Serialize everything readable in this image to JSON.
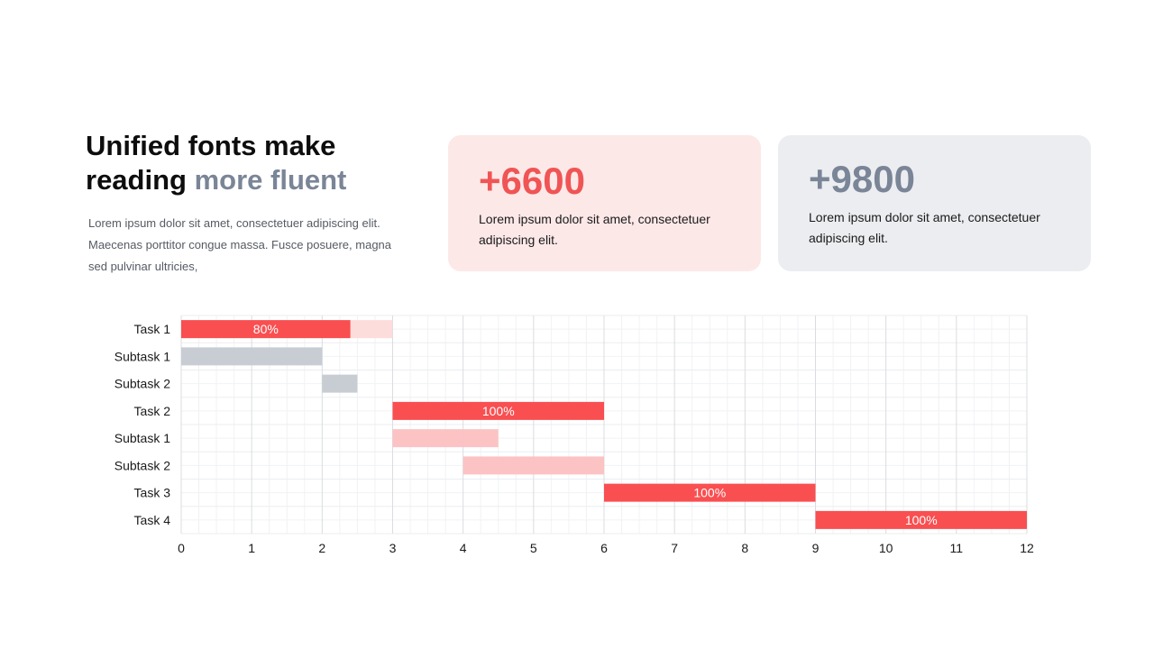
{
  "headline": {
    "line1": "Unified fonts make",
    "line2_plain": "reading ",
    "line2_accent": "more fluent"
  },
  "intro_text": "Lorem ipsum dolor sit amet, consectetuer adipiscing elit. Maecenas porttitor congue massa. Fusce posuere, magna sed pulvinar ultricies,",
  "cards": [
    {
      "stat": "+6600",
      "description": "Lorem ipsum dolor sit amet, consectetuer adipiscing elit.",
      "stat_color": "#f05454",
      "background": "#fde8e8"
    },
    {
      "stat": "+9800",
      "description": "Lorem ipsum dolor sit amet, consectetuer adipiscing elit.",
      "stat_color": "#7a8597",
      "background": "#ecedf0"
    }
  ],
  "colors": {
    "accent_red": "#f94f51",
    "light_red": "#fcc0c2",
    "pale_red": "#fddcdc",
    "gray": "#c5cad2",
    "headline_accent": "#7a8597"
  },
  "chart_data": {
    "type": "bar",
    "orientation": "horizontal",
    "subtype": "gantt",
    "categories": [
      "Task 1",
      "Subtask 1",
      "Subtask 2",
      "Task 2",
      "Subtask 1",
      "Subtask 2",
      "Task 3",
      "Task 4"
    ],
    "tasks": [
      {
        "label": "Task 1",
        "start": 0,
        "end": 3,
        "progress": 0.8,
        "progress_label": "80%",
        "style": "task"
      },
      {
        "label": "Subtask 1",
        "start": 0,
        "end": 2,
        "progress": null,
        "progress_label": "",
        "style": "gray"
      },
      {
        "label": "Subtask 2",
        "start": 2,
        "end": 2.5,
        "progress": null,
        "progress_label": "",
        "style": "gray"
      },
      {
        "label": "Task 2",
        "start": 3,
        "end": 6,
        "progress": 1.0,
        "progress_label": "100%",
        "style": "task"
      },
      {
        "label": "Subtask 1",
        "start": 3,
        "end": 4.5,
        "progress": null,
        "progress_label": "",
        "style": "light"
      },
      {
        "label": "Subtask 2",
        "start": 4,
        "end": 6,
        "progress": null,
        "progress_label": "",
        "style": "light"
      },
      {
        "label": "Task 3",
        "start": 6,
        "end": 9,
        "progress": 1.0,
        "progress_label": "100%",
        "style": "task"
      },
      {
        "label": "Task 4",
        "start": 9,
        "end": 12,
        "progress": 1.0,
        "progress_label": "100%",
        "style": "task"
      }
    ],
    "x_ticks": [
      0,
      1,
      2,
      3,
      4,
      5,
      6,
      7,
      8,
      9,
      10,
      11,
      12
    ],
    "xlim": [
      0,
      12
    ],
    "title": "",
    "xlabel": "",
    "ylabel": "",
    "grid": true,
    "minor_grid": true,
    "legend": "none"
  }
}
